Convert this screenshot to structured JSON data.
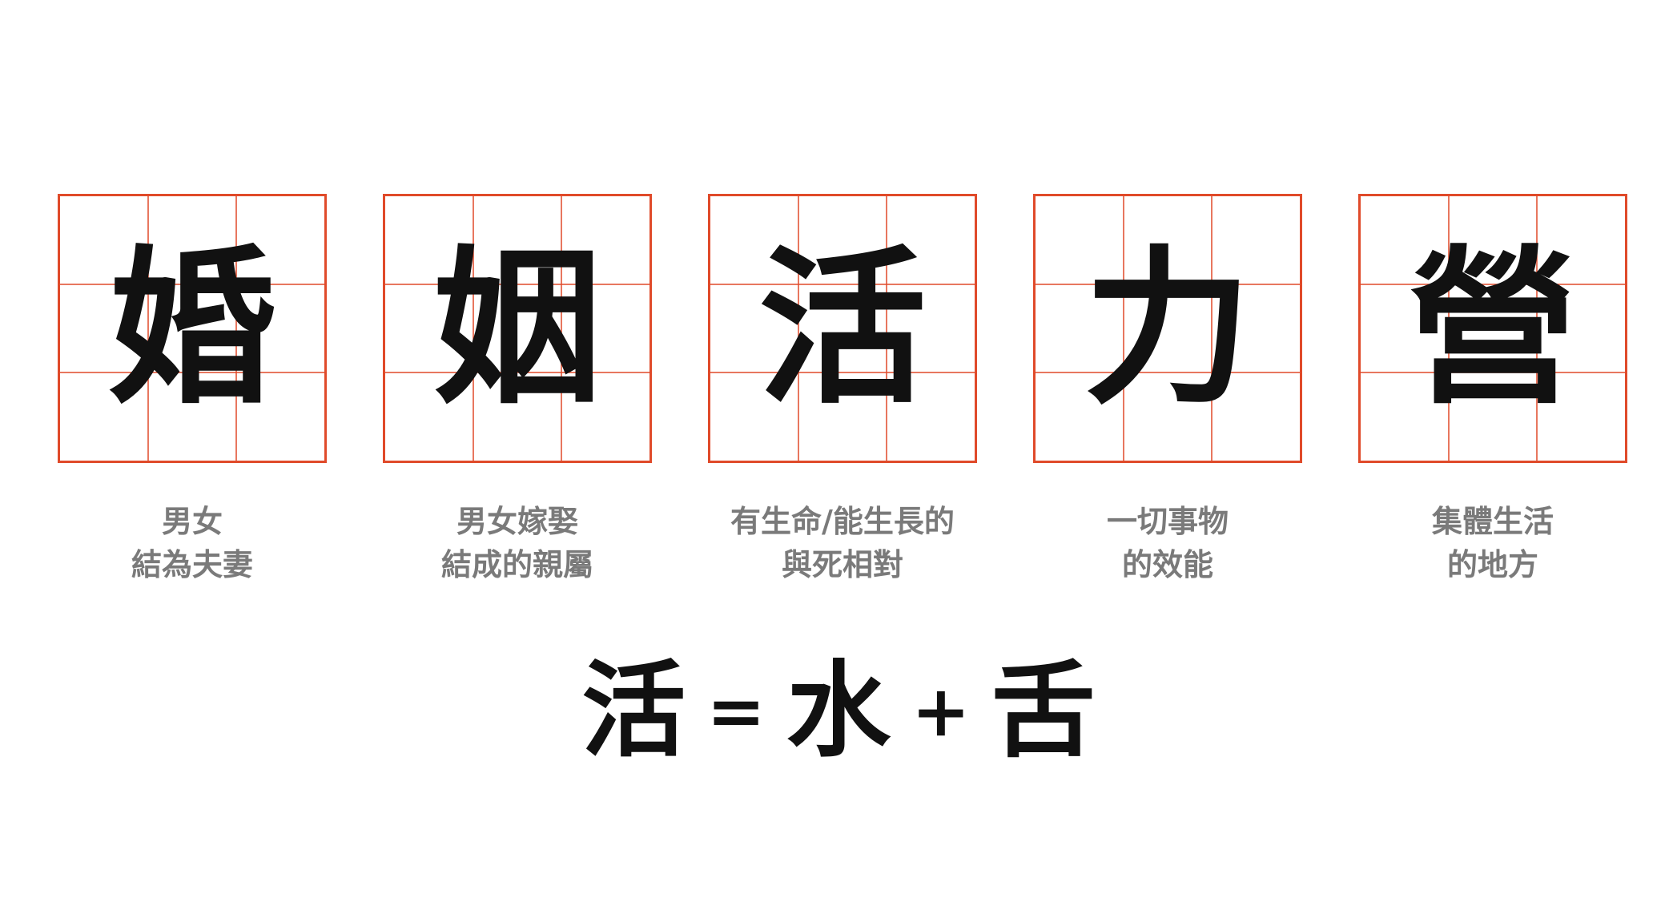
{
  "grid_color": "#e04a2a",
  "ink_color": "#111111",
  "caption_color": "#7a7a7a",
  "cards": [
    {
      "char": "婚",
      "caption_line1": "男女",
      "caption_line2": "結為夫妻"
    },
    {
      "char": "姻",
      "caption_line1": "男女嫁娶",
      "caption_line2": "結成的親屬"
    },
    {
      "char": "活",
      "caption_line1": "有生命/能生長的",
      "caption_line2": "與死相對"
    },
    {
      "char": "力",
      "caption_line1": "一切事物",
      "caption_line2": "的效能"
    },
    {
      "char": "營",
      "caption_line1": "集體生活",
      "caption_line2": "的地方"
    }
  ],
  "equation": {
    "result": "活",
    "equals": "=",
    "part1": "水",
    "plus": "+",
    "part2": "舌"
  }
}
